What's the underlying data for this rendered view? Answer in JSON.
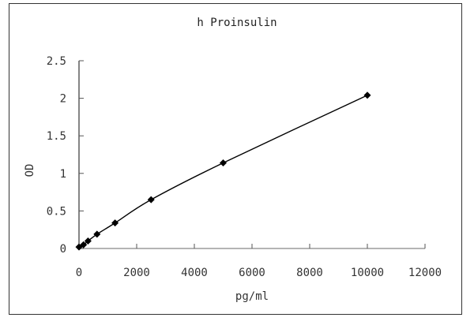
{
  "chart_data": {
    "type": "line",
    "title": "h Proinsulin",
    "xlabel": "pg/ml",
    "ylabel": "OD",
    "xlim": [
      0,
      12000
    ],
    "ylim": [
      0,
      2.5
    ],
    "x_ticks": [
      "0",
      "2000",
      "4000",
      "6000",
      "8000",
      "10000",
      "12000"
    ],
    "y_ticks": [
      "0",
      "0.5",
      "1",
      "1.5",
      "2",
      "2.5"
    ],
    "grid": false,
    "legend": null,
    "marker": "diamond",
    "series": [
      {
        "name": "h Proinsulin",
        "x": [
          0,
          156.25,
          312.5,
          625,
          1250,
          2500,
          5000,
          10000
        ],
        "y": [
          0.02,
          0.05,
          0.1,
          0.19,
          0.34,
          0.65,
          1.14,
          2.04
        ]
      }
    ]
  }
}
